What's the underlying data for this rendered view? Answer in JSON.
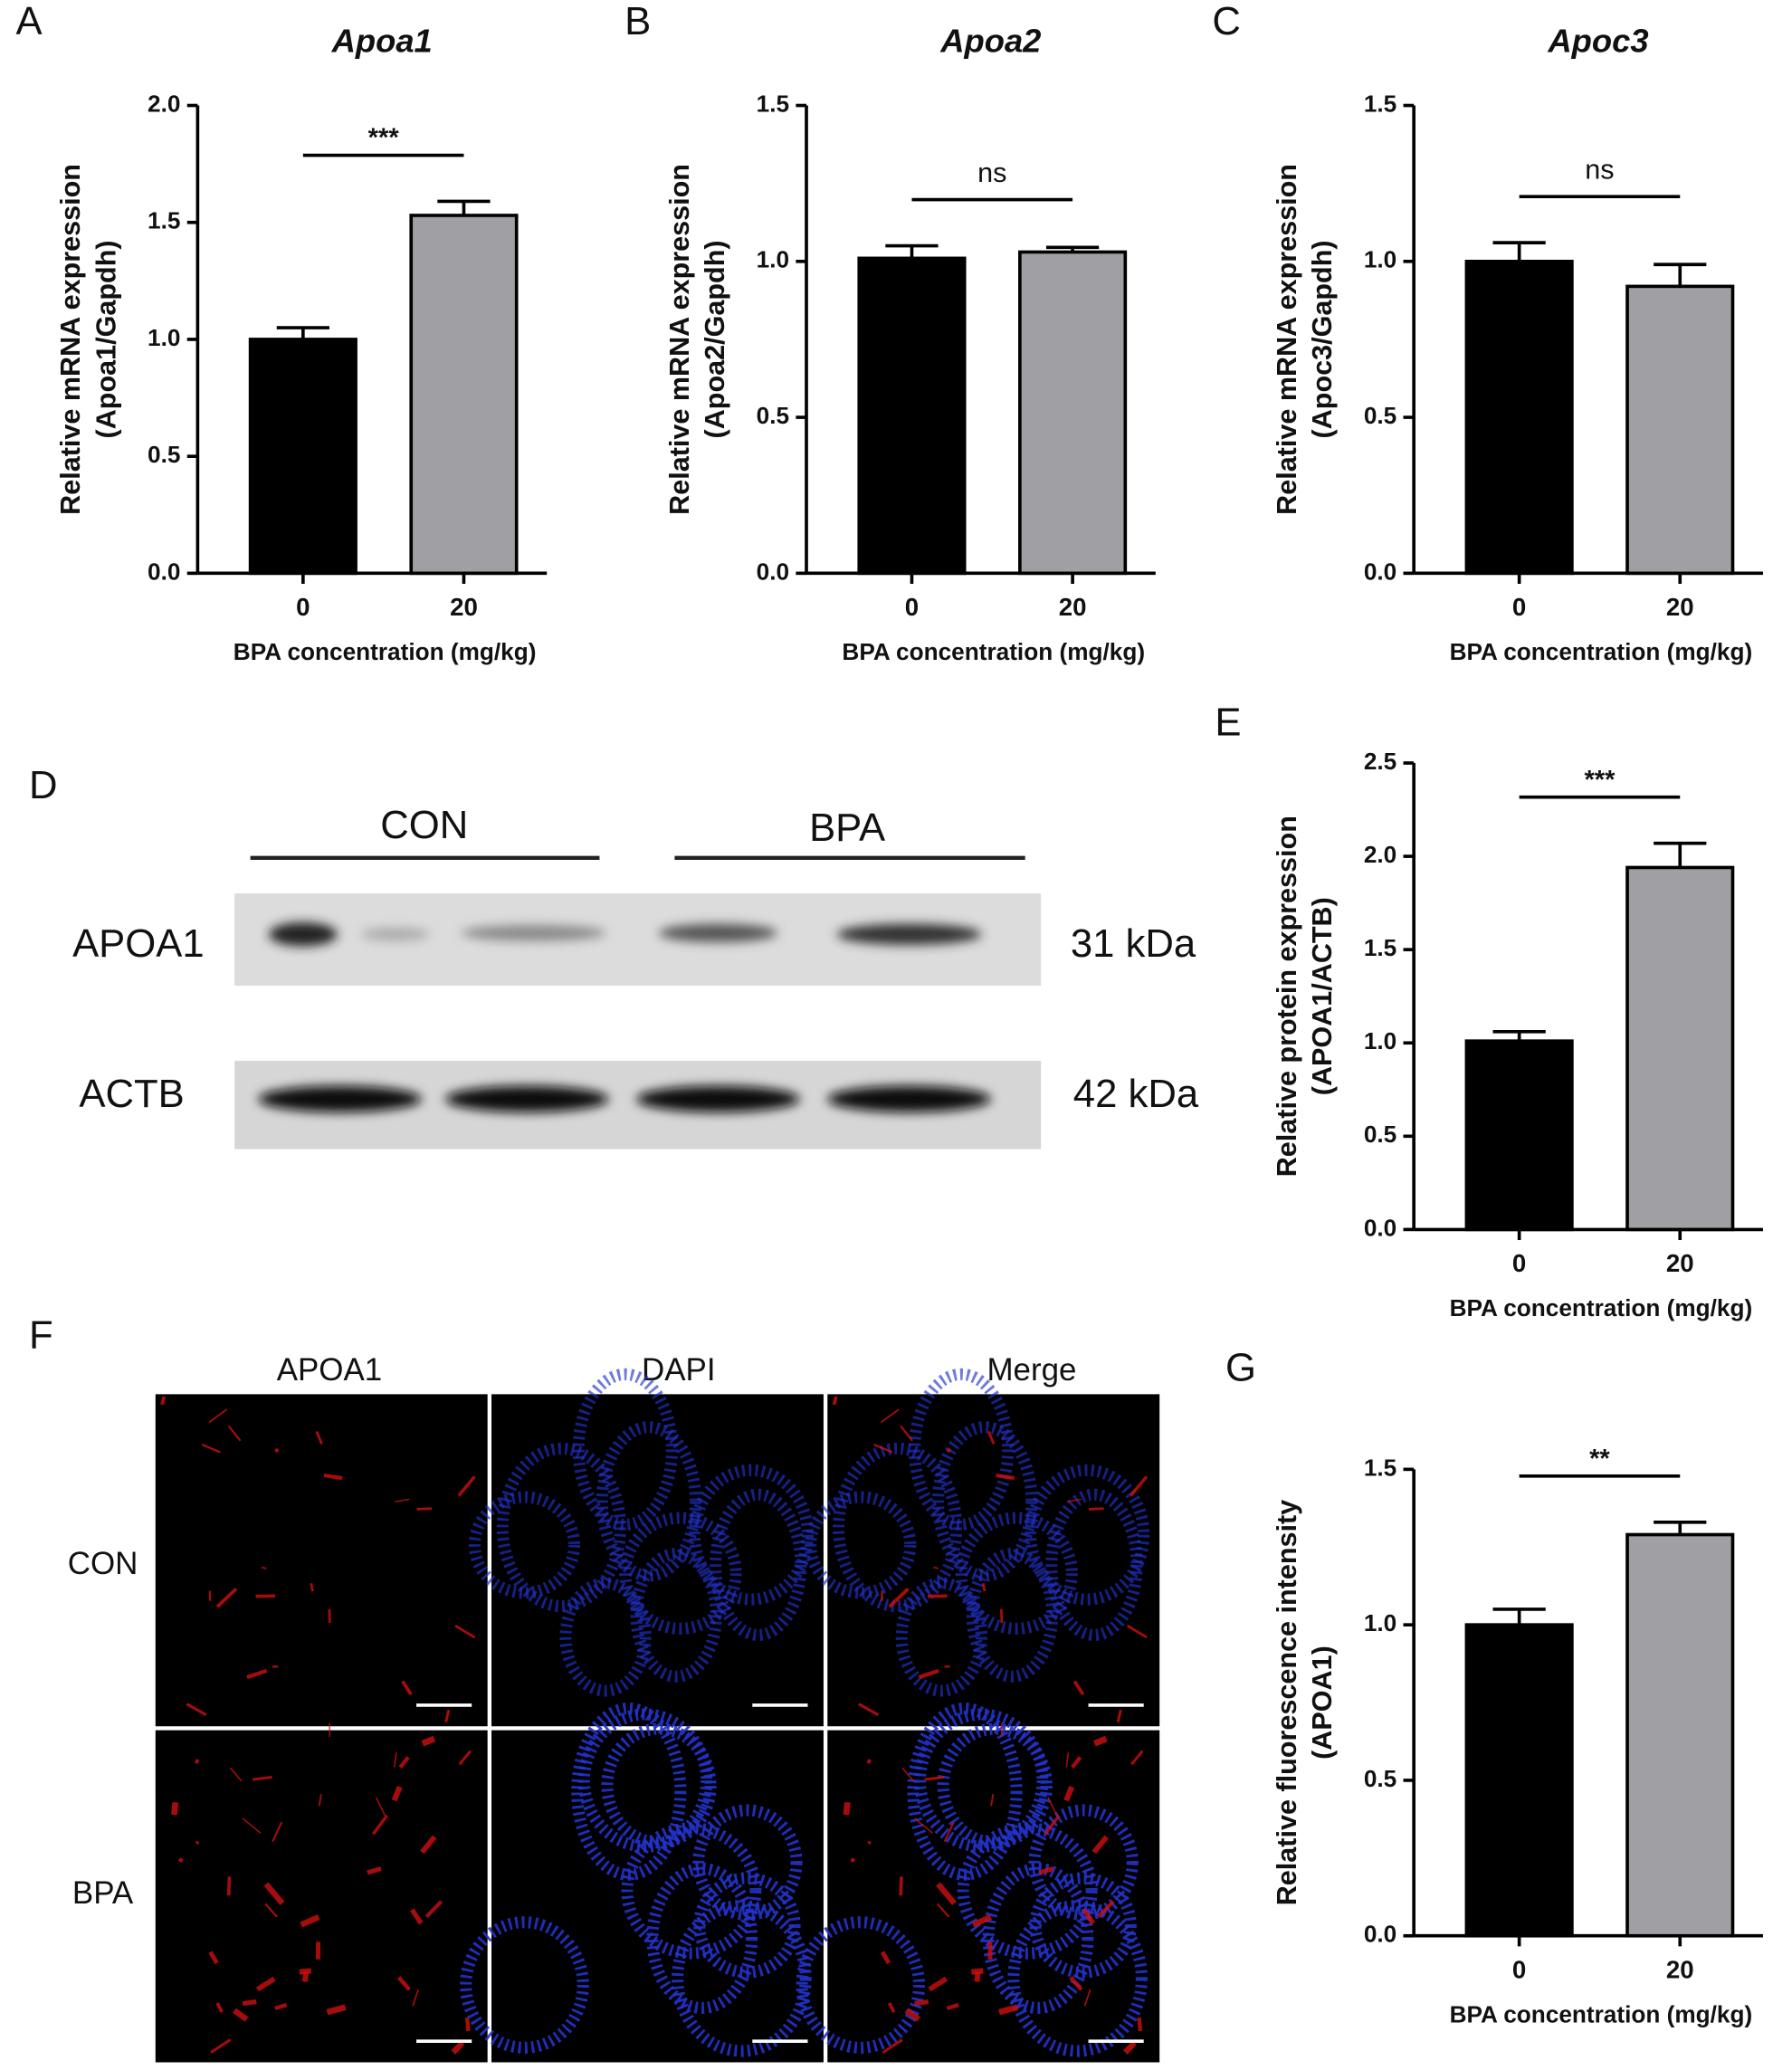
{
  "chart_data": [
    {
      "type": "bar",
      "label": "A",
      "title": "Apoa1",
      "ylabel": [
        "Relative mRNA expression",
        "(Apoa1/Gapdh)"
      ],
      "xlabel": "BPA concentration (mg/kg)",
      "categories": [
        "0",
        "20"
      ],
      "values": [
        1.0,
        1.53
      ],
      "errors": [
        0.05,
        0.06
      ],
      "colors": [
        "#000000",
        "#a0a0a4"
      ],
      "significance": "***",
      "ylim": [
        0,
        2
      ],
      "yticks": [
        {
          "value": 0,
          "label": "0.0"
        },
        0.5,
        {
          "value": 1,
          "label": "1.0"
        },
        1.5,
        {
          "value": 2,
          "label": "2.0"
        }
      ]
    },
    {
      "type": "bar",
      "label": "B",
      "title": "Apoa2",
      "ylabel": [
        "Relative mRNA expression",
        "(Apoa2/Gapdh)"
      ],
      "xlabel": "BPA concentration (mg/kg)",
      "categories": [
        "0",
        "20"
      ],
      "values": [
        1.01,
        1.03
      ],
      "errors": [
        0.04,
        0.015
      ],
      "colors": [
        "#000000",
        "#a0a0a4"
      ],
      "significance": "ns",
      "ylim": [
        0,
        1.5
      ],
      "yticks": [
        {
          "value": 0,
          "label": "0.0"
        },
        0.5,
        {
          "value": 1,
          "label": "1.0"
        },
        1.5
      ]
    },
    {
      "type": "bar",
      "label": "C",
      "title": "Apoc3",
      "ylabel": [
        "Relative mRNA expression",
        "(Apoc3/Gapdh)"
      ],
      "xlabel": "BPA concentration (mg/kg)",
      "categories": [
        "0",
        "20"
      ],
      "values": [
        1.0,
        0.92
      ],
      "errors": [
        0.06,
        0.07
      ],
      "colors": [
        "#000000",
        "#a0a0a4"
      ],
      "significance": "ns",
      "ylim": [
        0,
        1.5
      ],
      "yticks": [
        {
          "value": 0,
          "label": "0.0"
        },
        0.5,
        {
          "value": 1,
          "label": "1.0"
        },
        1.5
      ]
    },
    {
      "type": "bar",
      "label": "E",
      "ylabel": [
        "Relative protein expression",
        "(APOA1/ACTB)"
      ],
      "xlabel": "BPA concentration (mg/kg)",
      "categories": [
        "0",
        "20"
      ],
      "values": [
        1.01,
        1.94
      ],
      "errors": [
        0.05,
        0.13
      ],
      "colors": [
        "#000000",
        "#a0a0a4"
      ],
      "significance": "***",
      "ylim": [
        0,
        2.5
      ],
      "yticks": [
        {
          "value": 0,
          "label": "0.0"
        },
        0.5,
        {
          "value": 1,
          "label": "1.0"
        },
        1.5,
        {
          "value": 2,
          "label": "2.0"
        },
        2.5
      ]
    },
    {
      "type": "bar",
      "label": "G",
      "ylabel": [
        "Relative fluorescence intensity",
        "(APOA1)"
      ],
      "xlabel": "BPA concentration (mg/kg)",
      "categories": [
        "0",
        "20"
      ],
      "values": [
        1.0,
        1.29
      ],
      "errors": [
        0.05,
        0.04
      ],
      "colors": [
        "#000000",
        "#a0a0a4"
      ],
      "significance": "**",
      "ylim": [
        0,
        1.5
      ],
      "yticks": [
        {
          "value": 0,
          "label": "0.0"
        },
        0.5,
        {
          "value": 1,
          "label": "1.0"
        },
        1.5
      ]
    }
  ],
  "blot": {
    "label": "D",
    "groups": [
      "CON",
      "BPA"
    ],
    "rows": [
      {
        "name": "APOA1",
        "size": "31 kDa"
      },
      {
        "name": "ACTB",
        "size": "42 kDa"
      }
    ]
  },
  "micrographs": {
    "label": "F",
    "columns": [
      "APOA1",
      "DAPI",
      "Merge"
    ],
    "rows": [
      "CON",
      "BPA"
    ]
  }
}
